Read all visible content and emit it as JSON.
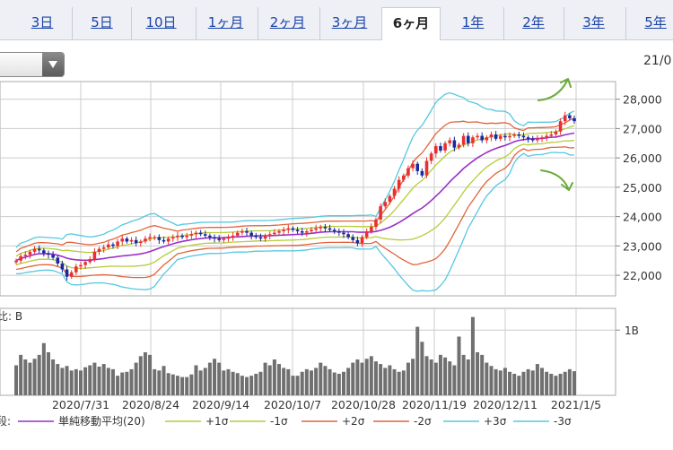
{
  "tabs": [
    {
      "label": "3日",
      "active": false
    },
    {
      "label": "5日",
      "active": false
    },
    {
      "label": "10日",
      "active": false
    },
    {
      "label": "1ヶ月",
      "active": false
    },
    {
      "label": "2ヶ月",
      "active": false
    },
    {
      "label": "3ヶ月",
      "active": false
    },
    {
      "label": "6ヶ月",
      "active": true
    },
    {
      "label": "1年",
      "active": false
    },
    {
      "label": "2年",
      "active": false
    },
    {
      "label": "3年",
      "active": false
    },
    {
      "label": "5年",
      "active": false
    }
  ],
  "header": {
    "date_label": "21/0"
  },
  "colors": {
    "up_candle": "#e83030",
    "down_candle": "#1a2a9c",
    "sma": "#9a2fc8",
    "sigma1": "#b6cc3a",
    "sigma2": "#e2643a",
    "sigma3": "#56c8e0",
    "volume": "#707070",
    "annotation_arrow": "#6aaa3a"
  },
  "chart_data": [
    {
      "type": "candlestick",
      "title": "",
      "x_tick_labels": [
        "2020/7/31",
        "2020/8/24",
        "2020/9/14",
        "2020/10/7",
        "2020/10/28",
        "2020/11/19",
        "2020/12/11",
        "2021/1/5"
      ],
      "y_tick_labels": [
        "28,000",
        "27,000",
        "26,000",
        "25,000",
        "24,000",
        "23,000",
        "22,000"
      ],
      "y_range": [
        21300,
        28600
      ],
      "grid": true,
      "sma_period": 20,
      "close": [
        22500,
        22650,
        22700,
        22800,
        22900,
        22850,
        22750,
        22700,
        22600,
        22400,
        22200,
        21950,
        22100,
        22300,
        22350,
        22450,
        22550,
        22800,
        22900,
        22950,
        23050,
        23000,
        23150,
        23250,
        23150,
        23200,
        23100,
        23150,
        23250,
        23300,
        23300,
        23200,
        23150,
        23250,
        23300,
        23350,
        23300,
        23350,
        23400,
        23450,
        23400,
        23350,
        23300,
        23250,
        23200,
        23250,
        23300,
        23350,
        23450,
        23500,
        23450,
        23350,
        23300,
        23250,
        23350,
        23400,
        23450,
        23500,
        23550,
        23600,
        23550,
        23500,
        23450,
        23500,
        23550,
        23600,
        23650,
        23600,
        23550,
        23500,
        23450,
        23400,
        23300,
        23200,
        23100,
        23300,
        23500,
        23650,
        23900,
        24350,
        24500,
        24700,
        24950,
        25250,
        25400,
        25650,
        25800,
        25550,
        25400,
        25900,
        26150,
        26400,
        26250,
        26500,
        26600,
        26350,
        26450,
        26750,
        26500,
        26700,
        26750,
        26600,
        26700,
        26800,
        26650,
        26750,
        26700,
        26750,
        26800,
        26750,
        26700,
        26650,
        26600,
        26650,
        26700,
        26750,
        26800,
        26900,
        27250,
        27450,
        27350,
        27250
      ],
      "volume_label": "1B",
      "volume_axis_label": "比: B",
      "volume": [
        0.46,
        0.62,
        0.55,
        0.5,
        0.56,
        0.62,
        0.8,
        0.66,
        0.55,
        0.48,
        0.42,
        0.45,
        0.38,
        0.4,
        0.38,
        0.43,
        0.46,
        0.5,
        0.44,
        0.48,
        0.42,
        0.4,
        0.3,
        0.35,
        0.36,
        0.4,
        0.5,
        0.6,
        0.66,
        0.62,
        0.4,
        0.38,
        0.45,
        0.34,
        0.32,
        0.3,
        0.28,
        0.28,
        0.32,
        0.46,
        0.38,
        0.42,
        0.5,
        0.56,
        0.5,
        0.38,
        0.4,
        0.36,
        0.34,
        0.3,
        0.28,
        0.3,
        0.33,
        0.36,
        0.5,
        0.46,
        0.55,
        0.48,
        0.42,
        0.4,
        0.3,
        0.3,
        0.36,
        0.4,
        0.38,
        0.42,
        0.5,
        0.45,
        0.4,
        0.35,
        0.33,
        0.36,
        0.42,
        0.5,
        0.55,
        0.5,
        0.56,
        0.6,
        0.52,
        0.48,
        0.42,
        0.46,
        0.4,
        0.36,
        0.38,
        0.5,
        0.56,
        1.05,
        0.82,
        0.6,
        0.55,
        0.5,
        0.62,
        0.58,
        0.52,
        0.46,
        0.9,
        0.62,
        0.55,
        1.2,
        0.66,
        0.62,
        0.5,
        0.45,
        0.4,
        0.38,
        0.42,
        0.36,
        0.33,
        0.3,
        0.36,
        0.4,
        0.38,
        0.48,
        0.42,
        0.36,
        0.33,
        0.3,
        0.33,
        0.36,
        0.4,
        0.37
      ],
      "legend": [
        {
          "key": "sma",
          "label": "単純移動平均(20)"
        },
        {
          "key": "sigma1",
          "label": "+1σ"
        },
        {
          "key": "sigma1",
          "label": "-1σ"
        },
        {
          "key": "sigma2",
          "label": "+2σ"
        },
        {
          "key": "sigma2",
          "label": "-2σ"
        },
        {
          "key": "sigma3",
          "label": "+3σ"
        },
        {
          "key": "sigma3",
          "label": "-3σ"
        }
      ],
      "legend_prefix": "段:",
      "annotations": [
        {
          "type": "arrow",
          "direction": "up",
          "near_date": "2021/1/5",
          "icon": "arrow-up-icon"
        },
        {
          "type": "arrow",
          "direction": "down",
          "near_date": "2021/1/5",
          "icon": "arrow-down-icon"
        }
      ]
    }
  ]
}
